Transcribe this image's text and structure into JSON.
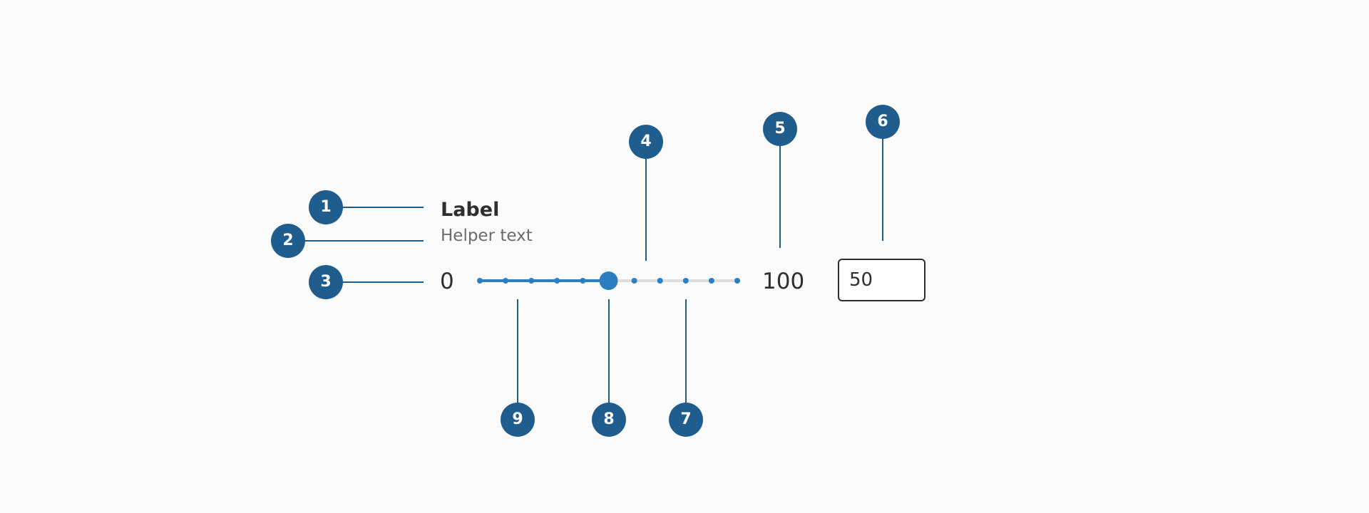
{
  "slider": {
    "label": "Label",
    "helper_text": "Helper text",
    "min_label": "0",
    "max_label": "100",
    "min": 0,
    "max": 100,
    "step": 10,
    "value": 50,
    "field_value": "50"
  },
  "callouts": [
    "1",
    "2",
    "3",
    "4",
    "5",
    "6",
    "7",
    "8",
    "9"
  ],
  "colors": {
    "marker": "#1e5d8e",
    "track_active": "#2b7fc1",
    "track_inactive": "#dedede",
    "thumb": "#2b7fc1"
  }
}
